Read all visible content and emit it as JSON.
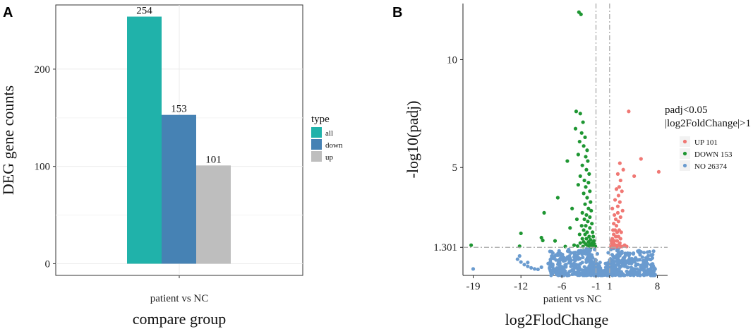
{
  "panels": {
    "a_label": "A",
    "b_label": "B"
  },
  "colors": {
    "all": "#20B2AA",
    "down": "#4682B4",
    "up": "#BEBEBE",
    "volcano_up": "#F07874",
    "volcano_down": "#1E9632",
    "volcano_no": "#6A9BCF",
    "panel_bg": "#FFFFFF",
    "grid": "#EBEBEB",
    "threshold_line": "#AAAAAA"
  },
  "chart_data": [
    {
      "type": "bar",
      "title": "",
      "xlabel": "compare group",
      "ylabel": "DEG gene counts",
      "categories": [
        "patient vs NC"
      ],
      "series": [
        {
          "name": "all",
          "values": [
            254
          ]
        },
        {
          "name": "down",
          "values": [
            153
          ]
        },
        {
          "name": "up",
          "values": [
            101
          ]
        }
      ],
      "data_labels": [
        "254",
        "153",
        "101"
      ],
      "ylim": [
        -12,
        266
      ],
      "yticks": [
        0,
        100,
        200
      ],
      "ytick_labels": [
        "0",
        "100",
        "200"
      ],
      "legend": {
        "title": "type",
        "entries": [
          "all",
          "down",
          "up"
        ],
        "placement": "right"
      }
    },
    {
      "type": "scatter",
      "title": "",
      "xlabel": "log2FlodChange",
      "ylabel": "-log10(padj)",
      "category_label": "patient vs NC",
      "xlim": [
        -20.5,
        9.5
      ],
      "ylim": [
        0,
        12.6
      ],
      "xticks": [
        -19,
        -12,
        -6,
        -1,
        1,
        8
      ],
      "xtick_labels": [
        "-19",
        "-12",
        "-6",
        "-1",
        "1",
        "8"
      ],
      "yticks": [
        1.301,
        5,
        10
      ],
      "ytick_labels": [
        "1.301",
        "5",
        "10"
      ],
      "thresholds": {
        "x": [
          -1,
          1
        ],
        "y": 1.301
      },
      "legend": {
        "title_line1": "padj<0.05",
        "title_line2": "|log2FoldChange|>1",
        "entries": [
          "UP 101",
          "DOWN 153",
          "NO 26374"
        ],
        "placement": "right"
      },
      "series": [
        {
          "name": "UP",
          "count": 101,
          "points": [
            [
              8.2,
              4.8
            ],
            [
              5.6,
              5.4
            ],
            [
              3.8,
              7.6
            ],
            [
              4.6,
              4.6
            ],
            [
              2.5,
              5.2
            ],
            [
              2.2,
              4.7
            ],
            [
              3,
              4.9
            ],
            [
              2.6,
              4.4
            ],
            [
              2.4,
              4.1
            ],
            [
              2,
              4
            ],
            [
              2.8,
              3.9
            ],
            [
              2.3,
              3.7
            ],
            [
              1.8,
              3.5
            ],
            [
              2.2,
              3.2
            ],
            [
              2.5,
              3.4
            ],
            [
              2.9,
              3
            ],
            [
              2.2,
              2.9
            ],
            [
              2.6,
              2.7
            ],
            [
              1.9,
              2.6
            ],
            [
              2.3,
              2.5
            ],
            [
              1.6,
              2.4
            ],
            [
              2,
              2.3
            ],
            [
              2.4,
              2.1
            ],
            [
              1.8,
              2.1
            ],
            [
              2.1,
              2
            ],
            [
              2.7,
              2
            ],
            [
              1.6,
              1.9
            ],
            [
              1.9,
              1.8
            ],
            [
              2.3,
              1.8
            ],
            [
              2.6,
              1.7
            ],
            [
              1.4,
              1.7
            ],
            [
              1.7,
              1.6
            ],
            [
              2.1,
              1.6
            ],
            [
              2.5,
              1.5
            ],
            [
              1.3,
              1.5
            ],
            [
              1.5,
              1.4
            ],
            [
              1.9,
              1.4
            ],
            [
              2.2,
              1.4
            ],
            [
              2.6,
              1.35
            ],
            [
              3.2,
              1.4
            ],
            [
              1.2,
              1.35
            ],
            [
              1.4,
              1.32
            ],
            [
              1.7,
              1.33
            ],
            [
              2,
              1.33
            ],
            [
              2.4,
              1.33
            ],
            [
              2.8,
              1.34
            ],
            [
              3.5,
              1.34
            ],
            [
              1.25,
              1.6
            ],
            [
              1.5,
              2.1
            ],
            [
              1.7,
              2.8
            ],
            [
              1.4,
              3.1
            ],
            [
              1.6,
              1.5
            ]
          ]
        },
        {
          "name": "DOWN",
          "count": 153,
          "points": [
            [
              -19.3,
              1.4
            ],
            [
              -12.2,
              1.35
            ],
            [
              -12,
              1.95
            ],
            [
              -9,
              1.75
            ],
            [
              -8.8,
              1.62
            ],
            [
              -8.6,
              2.9
            ],
            [
              -6.6,
              3.6
            ],
            [
              -5.2,
              5.3
            ],
            [
              -3.5,
              12.2
            ],
            [
              -3.2,
              12.1
            ],
            [
              -3.9,
              7.6
            ],
            [
              -3.3,
              7.5
            ],
            [
              -2.9,
              7.1
            ],
            [
              -4,
              6.8
            ],
            [
              -3.1,
              6.6
            ],
            [
              -2.6,
              6.4
            ],
            [
              -3.4,
              6.2
            ],
            [
              -2.8,
              6
            ],
            [
              -2.3,
              5.8
            ],
            [
              -3.6,
              5.6
            ],
            [
              -2.5,
              5.5
            ],
            [
              -2.2,
              5.3
            ],
            [
              -3,
              5.1
            ],
            [
              -2.4,
              4.9
            ],
            [
              -2,
              4.7
            ],
            [
              -3.3,
              4.6
            ],
            [
              -2.7,
              4.4
            ],
            [
              -2.1,
              4.3
            ],
            [
              -2.5,
              4.1
            ],
            [
              -1.9,
              3.9
            ],
            [
              -2.8,
              3.8
            ],
            [
              -2.3,
              3.6
            ],
            [
              -1.8,
              3.4
            ],
            [
              -2.6,
              3.3
            ],
            [
              -2.1,
              3.1
            ],
            [
              -1.7,
              3
            ],
            [
              -3,
              2.9
            ],
            [
              -2.4,
              2.8
            ],
            [
              -1.9,
              2.7
            ],
            [
              -2.7,
              2.6
            ],
            [
              -2.2,
              2.5
            ],
            [
              -1.6,
              2.4
            ],
            [
              -3.1,
              2.3
            ],
            [
              -2.5,
              2.3
            ],
            [
              -1.9,
              2.2
            ],
            [
              -2.8,
              2.1
            ],
            [
              -2.3,
              2
            ],
            [
              -1.5,
              2
            ],
            [
              -3.4,
              1.9
            ],
            [
              -2.6,
              1.9
            ],
            [
              -2,
              1.8
            ],
            [
              -1.4,
              1.8
            ],
            [
              -3,
              1.7
            ],
            [
              -2.4,
              1.7
            ],
            [
              -1.8,
              1.65
            ],
            [
              -1.3,
              1.6
            ],
            [
              -2.8,
              1.55
            ],
            [
              -2.1,
              1.55
            ],
            [
              -1.6,
              1.5
            ],
            [
              -3.3,
              1.5
            ],
            [
              -1.2,
              1.45
            ],
            [
              -2.5,
              1.45
            ],
            [
              -1.9,
              1.42
            ],
            [
              -4.2,
              1.4
            ],
            [
              -1.5,
              1.38
            ],
            [
              -2.2,
              1.37
            ],
            [
              -3.7,
              1.36
            ],
            [
              -1.1,
              1.35
            ],
            [
              -2.9,
              1.34
            ],
            [
              -1.7,
              1.33
            ],
            [
              -5.5,
              1.34
            ],
            [
              -7,
              1.6
            ],
            [
              -4.8,
              2.2
            ],
            [
              -3.8,
              2.6
            ],
            [
              -4.5,
              3.1
            ],
            [
              -3.6,
              4.2
            ]
          ]
        },
        {
          "name": "NO",
          "count": 26374,
          "points": [
            [
              -12.5,
              0.75
            ],
            [
              -12,
              0.62
            ],
            [
              -11.5,
              0.5
            ],
            [
              -11,
              0.42
            ],
            [
              -10.5,
              0.35
            ],
            [
              -10,
              0.3
            ],
            [
              -9.5,
              0.28
            ],
            [
              -12.2,
              0.9
            ],
            [
              -11,
              0.6
            ],
            [
              -9,
              0.38
            ],
            [
              -8,
              0.55
            ],
            [
              -7.5,
              1.1
            ],
            [
              -7,
              0.9
            ],
            [
              -6.5,
              0.6
            ],
            [
              -6,
              0.4
            ],
            [
              -5.5,
              0.7
            ],
            [
              -5,
              1.2
            ],
            [
              -4.5,
              0.5
            ],
            [
              -4,
              0.9
            ],
            [
              -3.5,
              1.1
            ],
            [
              -3,
              0.6
            ],
            [
              -2.5,
              1
            ],
            [
              -2,
              0.8
            ],
            [
              -1.5,
              0.5
            ],
            [
              -1,
              0.7
            ],
            [
              -0.5,
              0.3
            ],
            [
              0,
              0.1
            ],
            [
              0.5,
              0.3
            ],
            [
              1,
              0.7
            ],
            [
              1.5,
              0.6
            ],
            [
              2,
              0.9
            ],
            [
              2.5,
              0.6
            ],
            [
              3,
              0.8
            ],
            [
              3.5,
              0.4
            ],
            [
              4,
              0.6
            ],
            [
              4.5,
              0.3
            ],
            [
              5,
              0.5
            ],
            [
              5.5,
              0.25
            ],
            [
              6,
              0.4
            ],
            [
              6.5,
              0.2
            ],
            [
              7,
              0.3
            ],
            [
              7.5,
              0.2
            ],
            [
              -1.8,
              1.25
            ],
            [
              -1.2,
              1.2
            ],
            [
              -0.8,
              1
            ],
            [
              0.8,
              1.05
            ],
            [
              1.2,
              1.2
            ],
            [
              1.6,
              1.25
            ],
            [
              -2.2,
              1.2
            ],
            [
              2.2,
              1.2
            ],
            [
              -19,
              0.3
            ],
            [
              -0.4,
              0.6
            ],
            [
              0.4,
              0.55
            ],
            [
              -2.8,
              1.15
            ],
            [
              2.8,
              1.1
            ],
            [
              -3.8,
              0.8
            ],
            [
              3.8,
              0.7
            ]
          ]
        }
      ]
    }
  ]
}
